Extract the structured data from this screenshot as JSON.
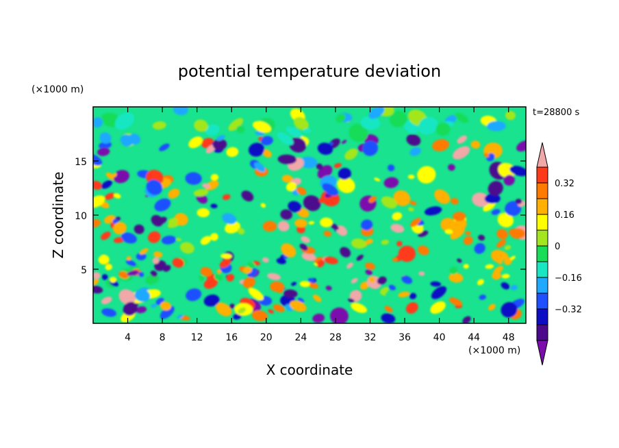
{
  "chart_data": {
    "type": "heatmap",
    "title": "potential temperature deviation",
    "xlabel": "X coordinate",
    "ylabel": "Z coordinate",
    "x_unit": "(×1000 m)",
    "y_unit": "(×1000 m)",
    "time_label": "t=28800 s",
    "xlim": [
      0,
      50
    ],
    "ylim": [
      0,
      20
    ],
    "x_ticks": [
      4,
      8,
      12,
      16,
      20,
      24,
      28,
      32,
      36,
      40,
      44,
      48
    ],
    "y_ticks": [
      5,
      10,
      15
    ],
    "colorbar": {
      "levels": [
        -0.48,
        -0.4,
        -0.32,
        -0.24,
        -0.16,
        -0.08,
        0,
        0.08,
        0.16,
        0.24,
        0.32,
        0.4
      ],
      "tick_labels": [
        "0.32",
        "0.16",
        "0",
        "−0.16",
        "−0.32"
      ],
      "tick_values": [
        0.32,
        0.16,
        0,
        -0.16,
        -0.32
      ],
      "colors": [
        "#7a0dab",
        "#4b0a8c",
        "#0d0dc4",
        "#1f4fff",
        "#1fa9ff",
        "#19e6c2",
        "#19dc59",
        "#a3e61f",
        "#ffff00",
        "#ffb000",
        "#ff7a00",
        "#ff3a1a",
        "#f0a8a8"
      ]
    },
    "colors": {
      "background": "#19e38e"
    }
  }
}
